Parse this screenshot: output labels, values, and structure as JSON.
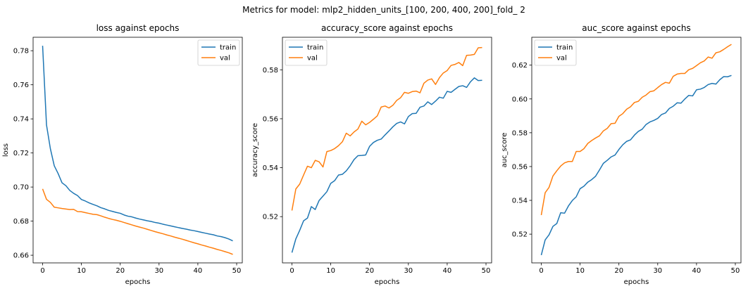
{
  "figure": {
    "suptitle": "Metrics for model: mlp2_hidden_units_[100, 200, 400, 200]_fold_ 2"
  },
  "colors": {
    "train": "#1f77b4",
    "val": "#ff7f0e"
  },
  "chart_data": [
    {
      "type": "line",
      "title": "loss against epochs",
      "xlabel": "epochs",
      "ylabel": "loss",
      "xlim": [
        -2.45,
        51.45
      ],
      "ylim": [
        0.6555,
        0.7879
      ],
      "xticks": [
        0,
        10,
        20,
        30,
        40,
        50
      ],
      "yticks": [
        0.66,
        0.68,
        0.7,
        0.72,
        0.74,
        0.76,
        0.78
      ],
      "ytick_labels": [
        "0.66",
        "0.68",
        "0.70",
        "0.72",
        "0.74",
        "0.76",
        "0.78"
      ],
      "legend": "top-right",
      "grid": false,
      "series": [
        {
          "name": "train",
          "x": [
            0,
            1,
            2,
            3,
            4,
            5,
            6,
            7,
            8,
            9,
            10,
            11,
            12,
            13,
            14,
            15,
            16,
            17,
            18,
            19,
            20,
            21,
            22,
            23,
            24,
            25,
            26,
            27,
            28,
            29,
            30,
            31,
            32,
            33,
            34,
            35,
            36,
            37,
            38,
            39,
            40,
            41,
            42,
            43,
            44,
            45,
            46,
            47,
            48,
            49
          ],
          "values": [
            0.7829,
            0.7365,
            0.7225,
            0.7125,
            0.7079,
            0.7025,
            0.7008,
            0.698,
            0.6963,
            0.695,
            0.6927,
            0.6918,
            0.6907,
            0.6898,
            0.689,
            0.6879,
            0.6872,
            0.6863,
            0.6857,
            0.6851,
            0.6846,
            0.6836,
            0.6829,
            0.6825,
            0.6818,
            0.6812,
            0.6807,
            0.6802,
            0.6798,
            0.6792,
            0.6788,
            0.6782,
            0.6777,
            0.6772,
            0.6767,
            0.6762,
            0.6757,
            0.6753,
            0.6748,
            0.6744,
            0.6739,
            0.6734,
            0.6729,
            0.6724,
            0.672,
            0.6713,
            0.6709,
            0.6703,
            0.6695,
            0.6684
          ]
        },
        {
          "name": "val",
          "x": [
            0,
            1,
            2,
            3,
            4,
            5,
            6,
            7,
            8,
            9,
            10,
            11,
            12,
            13,
            14,
            15,
            16,
            17,
            18,
            19,
            20,
            21,
            22,
            23,
            24,
            25,
            26,
            27,
            28,
            29,
            30,
            31,
            32,
            33,
            34,
            35,
            36,
            37,
            38,
            39,
            40,
            41,
            42,
            43,
            44,
            45,
            46,
            47,
            48,
            49
          ],
          "values": [
            0.6989,
            0.6928,
            0.691,
            0.6882,
            0.6878,
            0.6874,
            0.6871,
            0.6868,
            0.6869,
            0.6856,
            0.6855,
            0.685,
            0.6845,
            0.684,
            0.6838,
            0.6831,
            0.6823,
            0.6816,
            0.681,
            0.6805,
            0.6799,
            0.6792,
            0.6785,
            0.6778,
            0.6771,
            0.6765,
            0.6759,
            0.6752,
            0.6745,
            0.6738,
            0.6732,
            0.6726,
            0.6719,
            0.6713,
            0.6706,
            0.67,
            0.6694,
            0.6687,
            0.668,
            0.6673,
            0.6667,
            0.666,
            0.6654,
            0.6647,
            0.6641,
            0.6634,
            0.6628,
            0.6621,
            0.6614,
            0.6605
          ]
        }
      ]
    },
    {
      "type": "line",
      "title": "accuracy_score against epochs",
      "xlabel": "epochs",
      "ylabel": "accuracy_score",
      "xlim": [
        -2.45,
        51.45
      ],
      "ylim": [
        0.5011,
        0.5933
      ],
      "xticks": [
        0,
        10,
        20,
        30,
        40,
        50
      ],
      "yticks": [
        0.52,
        0.54,
        0.56,
        0.58
      ],
      "ytick_labels": [
        "0.52",
        "0.54",
        "0.56",
        "0.58"
      ],
      "legend": "top-left",
      "grid": false,
      "series": [
        {
          "name": "train",
          "x": [
            0,
            1,
            2,
            3,
            4,
            5,
            6,
            7,
            8,
            9,
            10,
            11,
            12,
            13,
            14,
            15,
            16,
            17,
            18,
            19,
            20,
            21,
            22,
            23,
            24,
            25,
            26,
            27,
            28,
            29,
            30,
            31,
            32,
            33,
            34,
            35,
            36,
            37,
            38,
            39,
            40,
            41,
            42,
            43,
            44,
            45,
            46,
            47,
            48,
            49
          ],
          "values": [
            0.5053,
            0.5109,
            0.5144,
            0.5183,
            0.5194,
            0.5241,
            0.5229,
            0.5266,
            0.5284,
            0.5302,
            0.5336,
            0.5347,
            0.537,
            0.5373,
            0.5387,
            0.5408,
            0.5433,
            0.5449,
            0.545,
            0.5452,
            0.5487,
            0.5503,
            0.5512,
            0.5517,
            0.5534,
            0.555,
            0.5567,
            0.5581,
            0.5587,
            0.5579,
            0.5609,
            0.5621,
            0.5622,
            0.5647,
            0.5652,
            0.5669,
            0.5658,
            0.5672,
            0.5688,
            0.5684,
            0.5712,
            0.5708,
            0.572,
            0.5732,
            0.5735,
            0.5728,
            0.5751,
            0.5767,
            0.5756,
            0.5757
          ]
        },
        {
          "name": "val",
          "x": [
            0,
            1,
            2,
            3,
            4,
            5,
            6,
            7,
            8,
            9,
            10,
            11,
            12,
            13,
            14,
            15,
            16,
            17,
            18,
            19,
            20,
            21,
            22,
            23,
            24,
            25,
            26,
            27,
            28,
            29,
            30,
            31,
            32,
            33,
            34,
            35,
            36,
            37,
            38,
            39,
            40,
            41,
            42,
            43,
            44,
            45,
            46,
            47,
            48,
            49
          ],
          "values": [
            0.5225,
            0.5313,
            0.5333,
            0.537,
            0.5406,
            0.54,
            0.543,
            0.5424,
            0.5403,
            0.5466,
            0.547,
            0.5478,
            0.549,
            0.5506,
            0.5541,
            0.553,
            0.5546,
            0.5558,
            0.559,
            0.5575,
            0.5585,
            0.5598,
            0.5612,
            0.5648,
            0.5652,
            0.5644,
            0.5655,
            0.5675,
            0.5686,
            0.5708,
            0.5704,
            0.5711,
            0.5713,
            0.5706,
            0.5745,
            0.5758,
            0.5763,
            0.574,
            0.5768,
            0.5787,
            0.5797,
            0.5818,
            0.5822,
            0.583,
            0.5817,
            0.5859,
            0.586,
            0.5863,
            0.589,
            0.5891
          ]
        }
      ]
    },
    {
      "type": "line",
      "title": "auc_score against epochs",
      "xlabel": "epochs",
      "ylabel": "auc_score",
      "xlim": [
        -2.45,
        51.45
      ],
      "ylim": [
        0.503,
        0.6365
      ],
      "xticks": [
        0,
        10,
        20,
        30,
        40,
        50
      ],
      "yticks": [
        0.52,
        0.54,
        0.56,
        0.58,
        0.6,
        0.62
      ],
      "ytick_labels": [
        "0.52",
        "0.54",
        "0.56",
        "0.58",
        "0.60",
        "0.62"
      ],
      "legend": "top-left",
      "grid": false,
      "series": [
        {
          "name": "train",
          "x": [
            0,
            1,
            2,
            3,
            4,
            5,
            6,
            7,
            8,
            9,
            10,
            11,
            12,
            13,
            14,
            15,
            16,
            17,
            18,
            19,
            20,
            21,
            22,
            23,
            24,
            25,
            26,
            27,
            28,
            29,
            30,
            31,
            32,
            33,
            34,
            35,
            36,
            37,
            38,
            39,
            40,
            41,
            42,
            43,
            44,
            45,
            46,
            47,
            48,
            49
          ],
          "values": [
            0.5076,
            0.5166,
            0.5196,
            0.5246,
            0.5263,
            0.5327,
            0.5324,
            0.5367,
            0.5399,
            0.5421,
            0.5469,
            0.5484,
            0.5508,
            0.5523,
            0.5543,
            0.558,
            0.5619,
            0.5637,
            0.5657,
            0.5668,
            0.5701,
            0.5729,
            0.5749,
            0.5758,
            0.5786,
            0.5808,
            0.5821,
            0.5849,
            0.5864,
            0.5873,
            0.5885,
            0.5908,
            0.5917,
            0.5944,
            0.5957,
            0.5977,
            0.5975,
            0.6,
            0.6021,
            0.6018,
            0.6054,
            0.6058,
            0.6068,
            0.6085,
            0.6092,
            0.6088,
            0.6114,
            0.6132,
            0.6131,
            0.6139
          ]
        },
        {
          "name": "val",
          "x": [
            0,
            1,
            2,
            3,
            4,
            5,
            6,
            7,
            8,
            9,
            10,
            11,
            12,
            13,
            14,
            15,
            16,
            17,
            18,
            19,
            20,
            21,
            22,
            23,
            24,
            25,
            26,
            27,
            28,
            29,
            30,
            31,
            32,
            33,
            34,
            35,
            36,
            37,
            38,
            39,
            40,
            41,
            42,
            43,
            44,
            45,
            46,
            47,
            48,
            49
          ],
          "values": [
            0.5313,
            0.5445,
            0.5477,
            0.5544,
            0.5575,
            0.5603,
            0.5622,
            0.563,
            0.563,
            0.5689,
            0.5689,
            0.5706,
            0.5737,
            0.5754,
            0.5769,
            0.5782,
            0.5811,
            0.5826,
            0.5854,
            0.5856,
            0.5897,
            0.5913,
            0.5939,
            0.5954,
            0.5979,
            0.5986,
            0.601,
            0.6023,
            0.6043,
            0.6048,
            0.6067,
            0.6085,
            0.6098,
            0.6093,
            0.6134,
            0.6147,
            0.6151,
            0.6151,
            0.6173,
            0.6181,
            0.6197,
            0.6214,
            0.6225,
            0.6248,
            0.6241,
            0.6273,
            0.6279,
            0.6293,
            0.6309,
            0.6323
          ]
        }
      ]
    }
  ]
}
